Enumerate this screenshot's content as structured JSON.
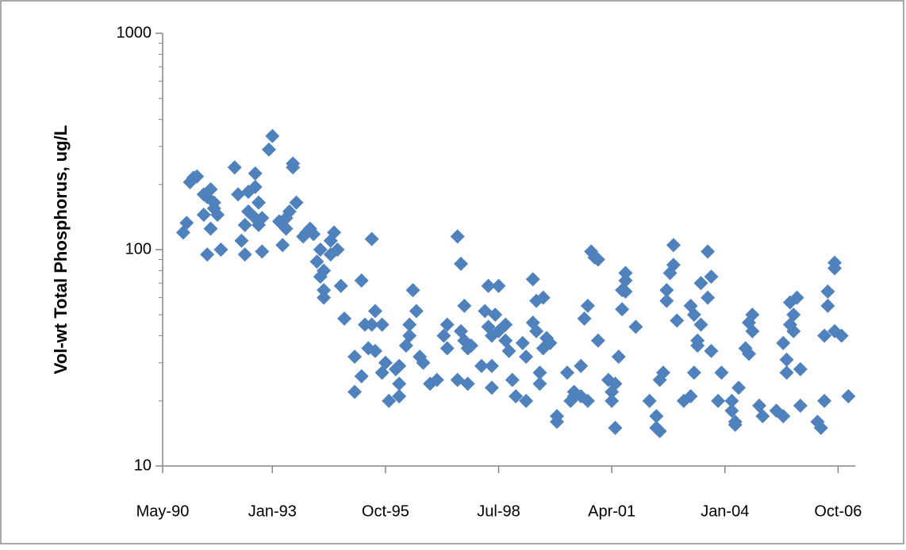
{
  "chart_data": {
    "type": "scatter",
    "y_label": "Vol-wt Total Phosphorus, ug/L",
    "yscale": "log",
    "marker": "diamond",
    "color": "#4f81bd",
    "xlim": [
      "1990-05",
      "2007-03"
    ],
    "xticks": [
      {
        "value": "1990-05",
        "label": "May-90"
      },
      {
        "value": "1993-01",
        "label": "Jan-93"
      },
      {
        "value": "1995-10",
        "label": "Oct-95"
      },
      {
        "value": "1998-07",
        "label": "Jul-98"
      },
      {
        "value": "2001-04",
        "label": "Apr-01"
      },
      {
        "value": "2004-01",
        "label": "Jan-04"
      },
      {
        "value": "2006-10",
        "label": "Oct-06"
      }
    ],
    "ylim": [
      10,
      1000
    ],
    "yticks": [
      10,
      100,
      1000
    ],
    "x": [
      "1990-11",
      "1990-12",
      "1991-01",
      "1991-02",
      "1991-03",
      "1991-05",
      "1991-05",
      "1991-06",
      "1991-06",
      "1991-07",
      "1991-07",
      "1991-08",
      "1991-08",
      "1991-09",
      "1991-10",
      "1992-02",
      "1992-03",
      "1992-04",
      "1992-05",
      "1992-05",
      "1992-06",
      "1992-06",
      "1992-08",
      "1992-08",
      "1992-08",
      "1992-09",
      "1992-09",
      "1992-10",
      "1992-10",
      "1992-12",
      "1993-01",
      "1993-03",
      "1993-04",
      "1993-05",
      "1993-05",
      "1993-06",
      "1993-07",
      "1993-07",
      "1993-08",
      "1993-10",
      "1993-11",
      "1993-12",
      "1994-01",
      "1994-02",
      "1994-03",
      "1994-03",
      "1994-04",
      "1994-04",
      "1994-04",
      "1994-06",
      "1994-06",
      "1994-07",
      "1994-08",
      "1994-09",
      "1994-10",
      "1995-01",
      "1995-01",
      "1995-03",
      "1995-03",
      "1995-04",
      "1995-05",
      "1995-06",
      "1995-06",
      "1995-07",
      "1995-07",
      "1995-09",
      "1995-09",
      "1995-10",
      "1995-11",
      "1996-01",
      "1996-02",
      "1996-02",
      "1996-02",
      "1996-04",
      "1996-05",
      "1996-05",
      "1996-06",
      "1996-07",
      "1996-08",
      "1996-09",
      "1996-11",
      "1997-01",
      "1997-03",
      "1997-04",
      "1997-04",
      "1997-07",
      "1997-07",
      "1997-08",
      "1997-08",
      "1997-09",
      "1997-09",
      "1997-10",
      "1997-10",
      "1997-11",
      "1998-02",
      "1998-03",
      "1998-04",
      "1998-04",
      "1998-05",
      "1998-05",
      "1998-05",
      "1998-06",
      "1998-07",
      "1998-07",
      "1998-09",
      "1998-09",
      "1998-10",
      "1998-11",
      "1998-12",
      "1999-02",
      "1999-03",
      "1999-03",
      "1999-05",
      "1999-05",
      "1999-06",
      "1999-06",
      "1999-07",
      "1999-07",
      "1999-08",
      "1999-08",
      "1999-09",
      "1999-10",
      "1999-12",
      "1999-12",
      "2000-03",
      "2000-04",
      "2000-05",
      "2000-05",
      "2000-07",
      "2000-07",
      "2000-08",
      "2000-09",
      "2000-09",
      "2000-10",
      "2000-11",
      "2000-12",
      "2000-12",
      "2001-03",
      "2001-04",
      "2001-04",
      "2001-05",
      "2001-05",
      "2001-06",
      "2001-07",
      "2001-07",
      "2001-08",
      "2001-08",
      "2001-08",
      "2001-11",
      "2002-03",
      "2002-05",
      "2002-05",
      "2002-06",
      "2002-06",
      "2002-07",
      "2002-08",
      "2002-08",
      "2002-09",
      "2002-10",
      "2002-10",
      "2002-11",
      "2003-01",
      "2003-03",
      "2003-03",
      "2003-04",
      "2003-04",
      "2003-05",
      "2003-05",
      "2003-06",
      "2003-06",
      "2003-08",
      "2003-08",
      "2003-09",
      "2003-09",
      "2003-11",
      "2003-12",
      "2004-03",
      "2004-03",
      "2004-04",
      "2004-04",
      "2004-05",
      "2004-07",
      "2004-08",
      "2004-08",
      "2004-09",
      "2004-09",
      "2004-11",
      "2004-12",
      "2005-04",
      "2005-06",
      "2005-06",
      "2005-07",
      "2005-07",
      "2005-08",
      "2005-08",
      "2005-09",
      "2005-09",
      "2005-10",
      "2005-11",
      "2005-11",
      "2006-04",
      "2006-05",
      "2006-06",
      "2006-06",
      "2006-07",
      "2006-07",
      "2006-09",
      "2006-09",
      "2006-09",
      "2006-11",
      "2007-01"
    ],
    "values": [
      120,
      133,
      205,
      215,
      218,
      180,
      145,
      175,
      95,
      190,
      125,
      165,
      155,
      145,
      100,
      240,
      180,
      110,
      95,
      130,
      185,
      150,
      225,
      195,
      140,
      165,
      130,
      140,
      98,
      290,
      335,
      135,
      105,
      125,
      140,
      150,
      250,
      240,
      165,
      115,
      120,
      125,
      118,
      88,
      100,
      75,
      60,
      65,
      80,
      95,
      110,
      120,
      100,
      68,
      48,
      32,
      22,
      26,
      72,
      45,
      35,
      112,
      45,
      52,
      34,
      45,
      27,
      30,
      20,
      28,
      29,
      24,
      21,
      36,
      40,
      45,
      65,
      52,
      32,
      30,
      24,
      25,
      40,
      35,
      45,
      115,
      25,
      86,
      42,
      55,
      38,
      35,
      24,
      36,
      29,
      52,
      68,
      44,
      40,
      29,
      23,
      50,
      68,
      42,
      45,
      38,
      34,
      25,
      21,
      37,
      32,
      20,
      73,
      46,
      58,
      42,
      24,
      27,
      60,
      35,
      39,
      37,
      17,
      16,
      27,
      20,
      22,
      21,
      21,
      29,
      48,
      55,
      20,
      98,
      92,
      90,
      38,
      25,
      22,
      20,
      15,
      24,
      32,
      53,
      65,
      72,
      78,
      64,
      44,
      20,
      17,
      15,
      14.5,
      25,
      27,
      58,
      65,
      78,
      85,
      105,
      47,
      20,
      21,
      55,
      50,
      27,
      36,
      38,
      45,
      70,
      98,
      60,
      75,
      34,
      20,
      27,
      20,
      18,
      16,
      15.5,
      23,
      35,
      33,
      46,
      50,
      42,
      19,
      17,
      18,
      17,
      37,
      31,
      27,
      45,
      57,
      50,
      42,
      60,
      28,
      19,
      16,
      15,
      20,
      40,
      55,
      64,
      87,
      82,
      42,
      40,
      21
    ]
  }
}
